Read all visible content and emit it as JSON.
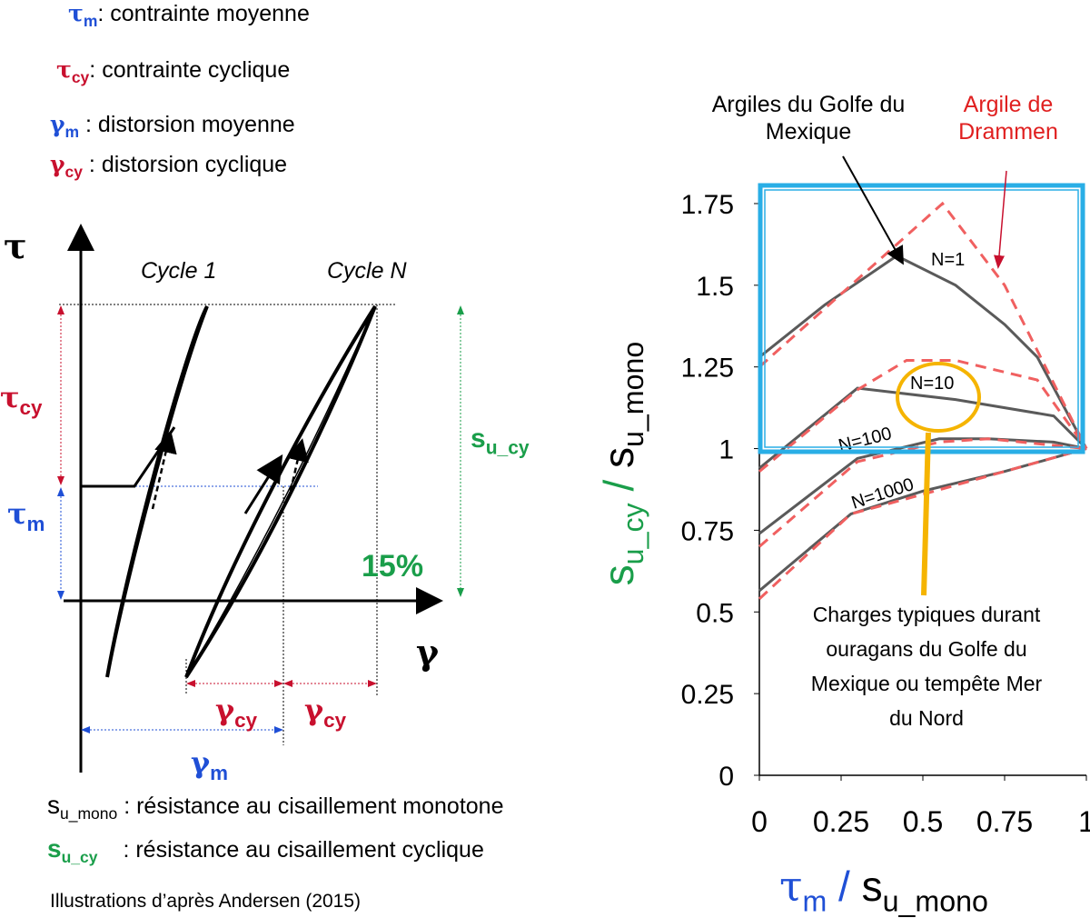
{
  "definitions": [
    {
      "symbol": "τ",
      "sub": "m",
      "text": ": contrainte moyenne"
    },
    {
      "symbol": "τ",
      "sub": "cy",
      "text": ": contrainte cyclique"
    },
    {
      "symbol": "γ",
      "sub": "m",
      "text": " : distorsion moyenne"
    },
    {
      "symbol": "γ",
      "sub": "cy",
      "text": " : distorsion cyclique"
    }
  ],
  "diagram": {
    "y_axis": "τ",
    "x_axis": "γ",
    "cycle_1": "Cycle 1",
    "cycle_n": "Cycle N",
    "tau_cy": {
      "symbol": "τ",
      "sub": "cy"
    },
    "tau_m": {
      "symbol": "τ",
      "sub": "m"
    },
    "su_cy": {
      "symbol": "s",
      "sub": "u_cy"
    },
    "strain": "15%",
    "gamma_cy": {
      "symbol": "γ",
      "sub": "cy"
    },
    "gamma_m": {
      "symbol": "γ",
      "sub": "m"
    }
  },
  "glossary": [
    {
      "symbol": "s",
      "sub": "u_mono",
      "text": " : résistance au cisaillement monotone"
    },
    {
      "symbol": "s",
      "sub": "u_cy",
      "text": ": résistance au cisaillement cyclique"
    }
  ],
  "source": "Illustrations d’après Andersen (2015)",
  "chart_data": {
    "type": "line",
    "xlim": [
      0,
      1
    ],
    "ylim": [
      0,
      1.8
    ],
    "xticks": [
      0,
      0.25,
      0.5,
      0.75,
      1
    ],
    "yticks": [
      0,
      0.25,
      0.5,
      0.75,
      1,
      1.25,
      1.5,
      1.75
    ],
    "xlabel": {
      "symbol": "τ",
      "sub": "m",
      "slash": "/",
      "denom": "s",
      "denom_sub": "u_mono"
    },
    "ylabel": {
      "symbol": "s",
      "sub": "u_cy",
      "slash": "/",
      "denom": "s",
      "denom_sub": "u_mono"
    },
    "series": [
      {
        "name": "Argiles du Golfe du Mexique",
        "color": "#5a5a5a",
        "dashed": false,
        "curves": [
          {
            "label": "N=1",
            "x": [
              0,
              0.2,
              0.42,
              0.6,
              0.75,
              0.85,
              1
            ],
            "values": [
              1.28,
              1.44,
              1.59,
              1.5,
              1.38,
              1.28,
              1.0
            ]
          },
          {
            "label": "N=10",
            "x": [
              0,
              0.3,
              0.6,
              0.9,
              1
            ],
            "values": [
              0.94,
              1.185,
              1.15,
              1.1,
              1.0
            ]
          },
          {
            "label": "N=100",
            "x": [
              0,
              0.3,
              0.55,
              0.7,
              0.9,
              1
            ],
            "values": [
              0.74,
              0.97,
              1.03,
              1.03,
              1.02,
              1.0
            ]
          },
          {
            "label": "N=1000",
            "x": [
              0,
              0.28,
              0.5,
              0.75,
              1
            ],
            "values": [
              0.565,
              0.8,
              0.87,
              0.93,
              1.0
            ]
          }
        ]
      },
      {
        "name": "Argile de Drammen",
        "color": "#f06060",
        "dashed": true,
        "curves": [
          {
            "x": [
              0,
              0.56,
              0.75,
              1
            ],
            "values": [
              1.25,
              1.75,
              1.5,
              1.0
            ]
          },
          {
            "x": [
              0,
              0.3,
              0.45,
              0.6,
              0.85,
              1
            ],
            "values": [
              0.93,
              1.18,
              1.27,
              1.27,
              1.21,
              1.0
            ]
          },
          {
            "x": [
              0,
              0.3,
              0.55,
              0.7,
              1
            ],
            "values": [
              0.7,
              0.96,
              1.02,
              1.03,
              1.0
            ]
          },
          {
            "x": [
              0,
              0.28,
              0.5,
              0.75,
              1
            ],
            "values": [
              0.54,
              0.8,
              0.86,
              0.93,
              1.0
            ]
          }
        ]
      }
    ],
    "annotation": "Charges typiques durant ouragans du Golfe du Mexique ou tempête Mer du Nord"
  }
}
